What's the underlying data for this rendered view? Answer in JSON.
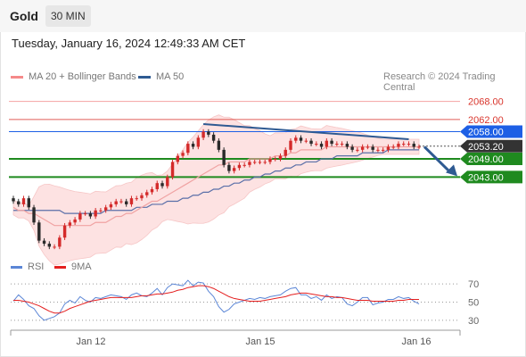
{
  "header": {
    "instrument": "Gold",
    "timeframe": "30 MIN"
  },
  "timestamp": "Tuesday, January 16, 2024 12:49:33 AM CET",
  "legend": {
    "ma20": {
      "label": "MA 20 + Bollinger Bands",
      "color": "#f58a8a"
    },
    "ma50": {
      "label": "MA 50",
      "color": "#2e5a92"
    },
    "credit": "Research © 2024 Trading Central"
  },
  "rsi_legend": {
    "rsi": {
      "label": "RSI",
      "color": "#5b86d6"
    },
    "ma9": {
      "label": "9MA",
      "color": "#e41f1f"
    }
  },
  "colors": {
    "resistance": "#f28b8b",
    "resistance_strong": "#d9352c",
    "pivot": "#1d5fe5",
    "support": "#1f8a1f",
    "current": "#333333",
    "arrow": "#2e5a92",
    "band_fill": "#fde2e2",
    "candle_up": "#d42a2a",
    "candle_down": "#2a2a2a"
  },
  "chart_data": [
    {
      "type": "candlestick",
      "x_tick_labels": [
        "Jan 12",
        "Jan 15",
        "Jan 16"
      ],
      "ylim": [
        2016,
        2072
      ],
      "levels": [
        {
          "label": "2068.00",
          "value": 2068.0,
          "kind": "resistance"
        },
        {
          "label": "2062.00",
          "value": 2062.0,
          "kind": "resistance"
        },
        {
          "label": "2058.00",
          "value": 2058.0,
          "kind": "pivot"
        },
        {
          "label": "2053.20",
          "value": 2053.2,
          "kind": "current"
        },
        {
          "label": "2049.00",
          "value": 2049.0,
          "kind": "support"
        },
        {
          "label": "2043.00",
          "value": 2043.0,
          "kind": "support"
        }
      ],
      "close": [
        2035,
        2034,
        2036,
        2033,
        2028,
        2022,
        2021,
        2020,
        2020,
        2023,
        2027,
        2028,
        2029,
        2031,
        2031,
        2030,
        2032,
        2032,
        2033,
        2034,
        2035,
        2035,
        2034,
        2036,
        2036,
        2037,
        2038,
        2039,
        2041,
        2040,
        2043,
        2048,
        2050,
        2051,
        2054,
        2053,
        2056,
        2058,
        2057,
        2055,
        2052,
        2047,
        2045,
        2046,
        2047,
        2047,
        2048,
        2048,
        2048,
        2048,
        2049,
        2049,
        2050,
        2052,
        2055,
        2056,
        2055,
        2055,
        2054,
        2054,
        2053,
        2055,
        2054,
        2054,
        2054,
        2053,
        2052,
        2052,
        2053,
        2053,
        2052,
        2052,
        2052,
        2053,
        2053,
        2054,
        2054,
        2054,
        2053,
        2053
      ],
      "series": [
        {
          "name": "MA 20",
          "values": [
            2033,
            2032,
            2032,
            2031,
            2031,
            2030,
            2029,
            2028,
            2027,
            2027,
            2027,
            2027,
            2027,
            2027,
            2027,
            2027,
            2028,
            2028,
            2028,
            2029,
            2030,
            2030,
            2031,
            2031,
            2032,
            2033,
            2034,
            2035,
            2035,
            2036,
            2037,
            2038,
            2039,
            2040,
            2041,
            2042,
            2043,
            2044,
            2045,
            2046,
            2047,
            2047,
            2048,
            2048,
            2048,
            2048,
            2049,
            2049,
            2049,
            2049,
            2049,
            2050,
            2050,
            2050,
            2051,
            2051,
            2052,
            2052,
            2052,
            2052,
            2052,
            2053,
            2053,
            2053,
            2053,
            2053,
            2053,
            2053,
            2053,
            2053,
            2053,
            2053,
            2053,
            2053,
            2053,
            2053,
            2053,
            2053,
            2053,
            2053
          ]
        },
        {
          "name": "MA 50",
          "values": [
            2032,
            2032,
            2032,
            2032,
            2032,
            2032,
            2032,
            2032,
            2032,
            2032,
            2031,
            2031,
            2031,
            2031,
            2031,
            2031,
            2031,
            2031,
            2032,
            2032,
            2032,
            2032,
            2032,
            2032,
            2033,
            2033,
            2033,
            2034,
            2034,
            2034,
            2035,
            2035,
            2035,
            2036,
            2036,
            2037,
            2037,
            2038,
            2038,
            2039,
            2039,
            2040,
            2040,
            2041,
            2041,
            2042,
            2042,
            2043,
            2043,
            2044,
            2044,
            2045,
            2045,
            2046,
            2046,
            2047,
            2047,
            2048,
            2048,
            2048,
            2049,
            2049,
            2049,
            2050,
            2050,
            2050,
            2050,
            2050,
            2051,
            2051,
            2051,
            2051,
            2051,
            2052,
            2052,
            2052,
            2052,
            2052,
            2052,
            2052
          ]
        }
      ]
    },
    {
      "type": "line",
      "y_tick_labels": [
        "70",
        "50",
        "30"
      ],
      "ylim": [
        22,
        78
      ],
      "series": [
        {
          "name": "RSI",
          "values": [
            51,
            58,
            53,
            46,
            43,
            35,
            30,
            32,
            34,
            38,
            48,
            52,
            49,
            56,
            52,
            50,
            55,
            54,
            56,
            58,
            57,
            56,
            53,
            58,
            60,
            57,
            56,
            60,
            65,
            58,
            66,
            70,
            69,
            68,
            74,
            68,
            72,
            71,
            62,
            56,
            45,
            39,
            42,
            48,
            50,
            52,
            54,
            53,
            55,
            54,
            56,
            57,
            58,
            62,
            65,
            66,
            58,
            58,
            54,
            56,
            52,
            58,
            54,
            56,
            55,
            48,
            46,
            50,
            55,
            55,
            47,
            49,
            50,
            53,
            53,
            56,
            54,
            55,
            51,
            48
          ]
        },
        {
          "name": "9MA",
          "values": [
            52,
            52,
            51,
            50,
            48,
            46,
            43,
            40,
            38,
            38,
            40,
            43,
            45,
            47,
            49,
            51,
            52,
            53,
            54,
            55,
            55,
            55,
            55,
            55,
            56,
            57,
            57,
            58,
            59,
            59,
            60,
            61,
            63,
            64,
            66,
            67,
            68,
            68,
            67,
            65,
            62,
            59,
            56,
            54,
            53,
            52,
            51,
            51,
            51,
            52,
            53,
            54,
            55,
            56,
            58,
            59,
            60,
            60,
            59,
            58,
            57,
            56,
            56,
            55,
            55,
            54,
            53,
            52,
            52,
            52,
            51,
            51,
            51,
            51,
            51,
            52,
            52,
            53,
            53,
            53
          ]
        }
      ]
    }
  ]
}
